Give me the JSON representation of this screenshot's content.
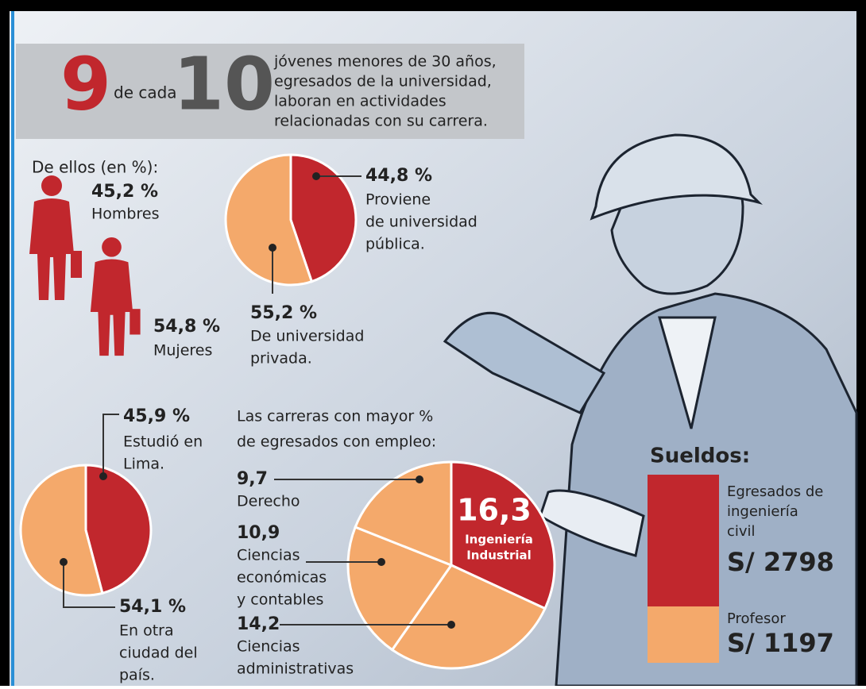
{
  "header": {
    "big1": "9",
    "mid": "de cada",
    "big2": "10",
    "lines": [
      "jóvenes menores de 30 años,",
      "egresados de la universidad,",
      "laboran en actividades",
      "relacionadas con su carrera."
    ]
  },
  "chart_data": [
    {
      "type": "icon",
      "title": "De ellos (en %):",
      "categories": [
        "Hombres",
        "Mujeres"
      ],
      "values": [
        45.2,
        54.8
      ],
      "value_labels": [
        "45,2 %",
        "54,8 %"
      ],
      "color": "#c1272d"
    },
    {
      "type": "pie",
      "categories": [
        [
          "Proviene",
          "de universidad",
          "pública."
        ],
        [
          "De universidad",
          "privada."
        ]
      ],
      "values": [
        44.8,
        55.2
      ],
      "value_labels": [
        "44,8 %",
        "55,2 %"
      ],
      "colors": [
        "#c1272d",
        "#f4a96b"
      ]
    },
    {
      "type": "pie",
      "categories": [
        [
          "Estudió en",
          "Lima."
        ],
        [
          "En otra",
          "ciudad del",
          "país."
        ]
      ],
      "values": [
        45.9,
        54.1
      ],
      "value_labels": [
        "45,9 %",
        "54,1 %"
      ],
      "colors": [
        "#c1272d",
        "#f4a96b"
      ]
    },
    {
      "type": "pie",
      "title": [
        "Las carreras con mayor %",
        "de egresados con empleo:"
      ],
      "categories": [
        [
          "Ingeniería",
          "Industrial"
        ],
        [
          "Ciencias",
          "administrativas"
        ],
        [
          "Ciencias",
          "económicas",
          "y contables"
        ],
        [
          "Derecho"
        ]
      ],
      "values": [
        16.3,
        14.2,
        10.9,
        9.7
      ],
      "value_labels": [
        "16,3",
        "14,2",
        "10,9",
        "9,7"
      ],
      "colors": [
        "#c1272d",
        "#f4a96b",
        "#f4a96b",
        "#f4a96b"
      ]
    },
    {
      "type": "stacked",
      "title": "Sueldos:",
      "categories": [
        [
          "Egresados de",
          "ingeniería",
          "civil"
        ],
        [
          "Profesor"
        ]
      ],
      "values": [
        2798,
        1197
      ],
      "value_labels": [
        "S/ 2798",
        "S/ 1197"
      ],
      "colors": [
        "#c1272d",
        "#f4a96b"
      ]
    }
  ]
}
